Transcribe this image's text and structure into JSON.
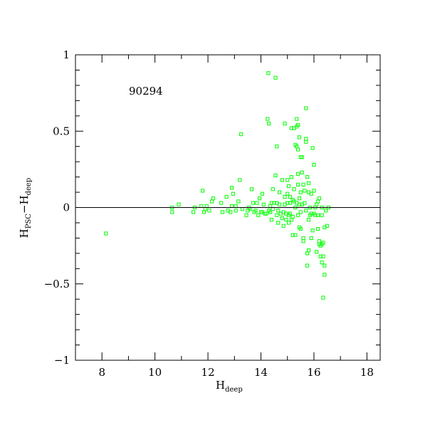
{
  "chart_data": {
    "type": "scatter",
    "annotation": "90294",
    "xlabel": {
      "main": "H",
      "sub": "deep"
    },
    "ylabel": {
      "main1": "H",
      "sub1": "PSC",
      "minus": "−",
      "main2": "H",
      "sub2": "deep"
    },
    "xlim": [
      7,
      18.5
    ],
    "ylim": [
      -1,
      1
    ],
    "x_ticks": [
      8,
      10,
      12,
      14,
      16,
      18
    ],
    "x_tick_labels": [
      "8",
      "10",
      "12",
      "14",
      "16",
      "18"
    ],
    "y_ticks": [
      -1,
      -0.5,
      0,
      0.5,
      1
    ],
    "y_tick_labels": [
      "−1",
      "−0.5",
      "0",
      "0.5",
      "1"
    ],
    "reference_line_y": 0,
    "grid": false,
    "legend": "none",
    "marker": "open-square",
    "colors": {
      "points": "#00ff00",
      "axes": "#000000",
      "background": "#ffffff"
    },
    "points": [
      [
        8.15,
        -0.17
      ],
      [
        10.65,
        -0.03
      ],
      [
        10.65,
        0.0
      ],
      [
        10.9,
        0.02
      ],
      [
        11.45,
        -0.03
      ],
      [
        11.5,
        0.0
      ],
      [
        11.75,
        0.01
      ],
      [
        11.8,
        0.11
      ],
      [
        11.85,
        -0.03
      ],
      [
        11.9,
        -0.01
      ],
      [
        11.95,
        0.01
      ],
      [
        12.05,
        -0.02
      ],
      [
        12.15,
        0.04
      ],
      [
        12.2,
        0.06
      ],
      [
        12.5,
        0.03
      ],
      [
        12.55,
        -0.03
      ],
      [
        12.7,
        0.07
      ],
      [
        12.75,
        -0.02
      ],
      [
        12.85,
        -0.03
      ],
      [
        12.9,
        0.01
      ],
      [
        12.9,
        0.13
      ],
      [
        12.95,
        0.09
      ],
      [
        13.05,
        0.01
      ],
      [
        13.05,
        -0.02
      ],
      [
        13.15,
        0.04
      ],
      [
        13.2,
        0.18
      ],
      [
        13.25,
        0.48
      ],
      [
        13.3,
        -0.01
      ],
      [
        13.45,
        -0.05
      ],
      [
        13.5,
        -0.02
      ],
      [
        13.55,
        0.0
      ],
      [
        13.6,
        -0.01
      ],
      [
        13.65,
        0.12
      ],
      [
        13.7,
        0.03
      ],
      [
        13.75,
        -0.03
      ],
      [
        13.8,
        -0.02
      ],
      [
        13.85,
        0.03
      ],
      [
        13.9,
        -0.05
      ],
      [
        13.95,
        0.06
      ],
      [
        14.0,
        -0.03
      ],
      [
        14.05,
        0.09
      ],
      [
        14.05,
        -0.03
      ],
      [
        14.1,
        0.02
      ],
      [
        14.15,
        -0.04
      ],
      [
        14.2,
        -0.04
      ],
      [
        14.25,
        0.58
      ],
      [
        14.28,
        0.88
      ],
      [
        14.3,
        0.55
      ],
      [
        14.3,
        -0.02
      ],
      [
        14.35,
        -0.03
      ],
      [
        14.35,
        0.01
      ],
      [
        14.4,
        -0.08
      ],
      [
        14.4,
        0.03
      ],
      [
        14.45,
        -0.01
      ],
      [
        14.45,
        0.12
      ],
      [
        14.5,
        0.03
      ],
      [
        14.55,
        0.21
      ],
      [
        14.55,
        0.85
      ],
      [
        14.6,
        0.4
      ],
      [
        14.6,
        -0.05
      ],
      [
        14.6,
        0.03
      ],
      [
        14.65,
        -0.1
      ],
      [
        14.65,
        -0.02
      ],
      [
        14.7,
        0.02
      ],
      [
        14.7,
        0.1
      ],
      [
        14.75,
        -0.04
      ],
      [
        14.8,
        0.18
      ],
      [
        14.8,
        -0.07
      ],
      [
        14.85,
        -0.03
      ],
      [
        14.85,
        -0.12
      ],
      [
        14.9,
        0.55
      ],
      [
        14.9,
        0.02
      ],
      [
        14.9,
        0.07
      ],
      [
        14.95,
        -0.08
      ],
      [
        14.95,
        -0.04
      ],
      [
        15.0,
        0.03
      ],
      [
        15.0,
        0.09
      ],
      [
        15.0,
        0.18
      ],
      [
        15.05,
        -0.1
      ],
      [
        15.05,
        -0.05
      ],
      [
        15.05,
        0.14
      ],
      [
        15.1,
        0.03
      ],
      [
        15.1,
        0.07
      ],
      [
        15.1,
        -0.04
      ],
      [
        15.15,
        0.52
      ],
      [
        15.15,
        -0.08
      ],
      [
        15.15,
        0.2
      ],
      [
        15.2,
        -0.18
      ],
      [
        15.2,
        0.05
      ],
      [
        15.2,
        -0.06
      ],
      [
        15.25,
        0.52
      ],
      [
        15.25,
        0.12
      ],
      [
        15.25,
        0.04
      ],
      [
        15.3,
        0.41
      ],
      [
        15.3,
        0.0
      ],
      [
        15.3,
        -0.18
      ],
      [
        15.35,
        0.4
      ],
      [
        15.35,
        0.03
      ],
      [
        15.35,
        0.58
      ],
      [
        15.35,
        0.53
      ],
      [
        15.4,
        0.54
      ],
      [
        15.4,
        0.38
      ],
      [
        15.4,
        0.22
      ],
      [
        15.4,
        0.15
      ],
      [
        15.4,
        -0.05
      ],
      [
        15.45,
        0.06
      ],
      [
        15.45,
        0.02
      ],
      [
        15.45,
        0.46
      ],
      [
        15.45,
        -0.13
      ],
      [
        15.5,
        0.33
      ],
      [
        15.5,
        0.1
      ],
      [
        15.5,
        -0.03
      ],
      [
        15.5,
        -0.14
      ],
      [
        15.55,
        0.23
      ],
      [
        15.55,
        0.33
      ],
      [
        15.55,
        0.02
      ],
      [
        15.6,
        0.15
      ],
      [
        15.6,
        -0.2
      ],
      [
        15.6,
        -0.22
      ],
      [
        15.65,
        0.03
      ],
      [
        15.65,
        0.11
      ],
      [
        15.7,
        -0.02
      ],
      [
        15.7,
        0.43
      ],
      [
        15.7,
        0.45
      ],
      [
        15.7,
        0.65
      ],
      [
        15.75,
        0.2
      ],
      [
        15.75,
        -0.3
      ],
      [
        15.75,
        -0.38
      ],
      [
        15.8,
        0.1
      ],
      [
        15.8,
        0.16
      ],
      [
        15.8,
        -0.28
      ],
      [
        15.8,
        -0.08
      ],
      [
        15.85,
        -0.05
      ],
      [
        15.85,
        0.0
      ],
      [
        15.9,
        0.09
      ],
      [
        15.9,
        -0.04
      ],
      [
        15.9,
        -0.2
      ],
      [
        15.95,
        0.39
      ],
      [
        15.95,
        -0.15
      ],
      [
        16.0,
        0.11
      ],
      [
        16.0,
        0.28
      ],
      [
        16.0,
        -0.04
      ],
      [
        16.05,
        0.0
      ],
      [
        16.05,
        -0.05
      ],
      [
        16.1,
        0.02
      ],
      [
        16.1,
        -0.29
      ],
      [
        16.15,
        0.04
      ],
      [
        16.15,
        -0.05
      ],
      [
        16.15,
        -0.14
      ],
      [
        16.2,
        0.06
      ],
      [
        16.2,
        -0.22
      ],
      [
        16.2,
        -0.24
      ],
      [
        16.25,
        -0.25
      ],
      [
        16.25,
        -0.32
      ],
      [
        16.3,
        0.0
      ],
      [
        16.3,
        -0.05
      ],
      [
        16.3,
        -0.36
      ],
      [
        16.3,
        -0.24
      ],
      [
        16.35,
        -0.32
      ],
      [
        16.35,
        -0.23
      ],
      [
        16.35,
        -0.59
      ],
      [
        16.4,
        -0.38
      ],
      [
        16.4,
        -0.44
      ],
      [
        16.4,
        -0.13
      ],
      [
        16.45,
        -0.02
      ],
      [
        16.5,
        -0.12
      ],
      [
        16.55,
        0.0
      ]
    ]
  }
}
